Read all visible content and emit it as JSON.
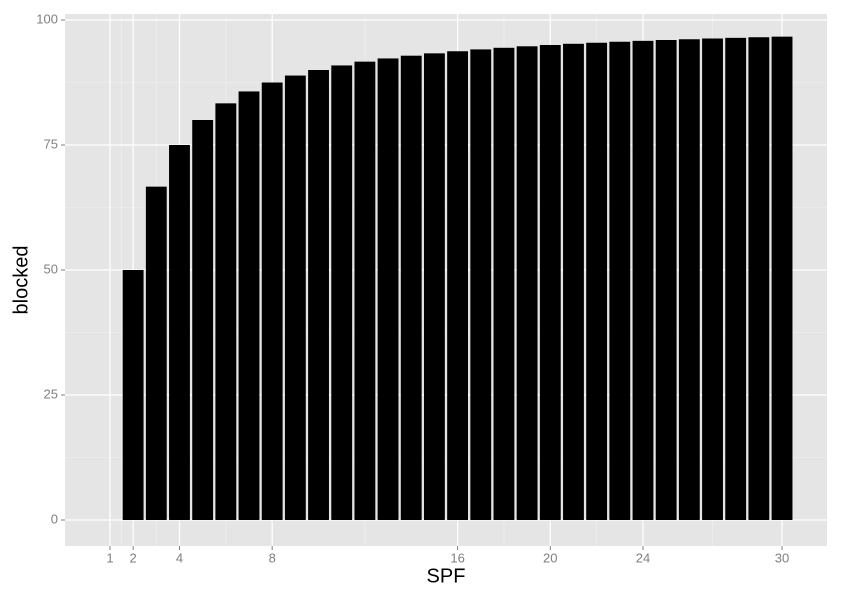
{
  "chart_data": {
    "type": "bar",
    "x_label": "SPF",
    "y_label": "blocked",
    "x": [
      1,
      2,
      3,
      4,
      5,
      6,
      7,
      8,
      9,
      10,
      11,
      12,
      13,
      14,
      15,
      16,
      17,
      18,
      19,
      20,
      21,
      22,
      23,
      24,
      25,
      26,
      27,
      28,
      29,
      30
    ],
    "values": [
      0,
      50,
      66.67,
      75,
      80,
      83.33,
      85.71,
      87.5,
      88.89,
      90,
      90.91,
      91.67,
      92.31,
      92.86,
      93.33,
      93.75,
      94.12,
      94.44,
      94.74,
      95,
      95.24,
      95.45,
      95.65,
      95.83,
      96,
      96.15,
      96.3,
      96.43,
      96.55,
      96.67
    ],
    "color": "#000000",
    "xlim": [
      -0.94,
      31.94
    ],
    "ylim": [
      -5.2,
      101.2
    ],
    "xticks": [
      1,
      2,
      4,
      8,
      16,
      20,
      24,
      30
    ],
    "yticks": [
      0,
      25,
      50,
      75,
      100
    ],
    "grid": true
  }
}
